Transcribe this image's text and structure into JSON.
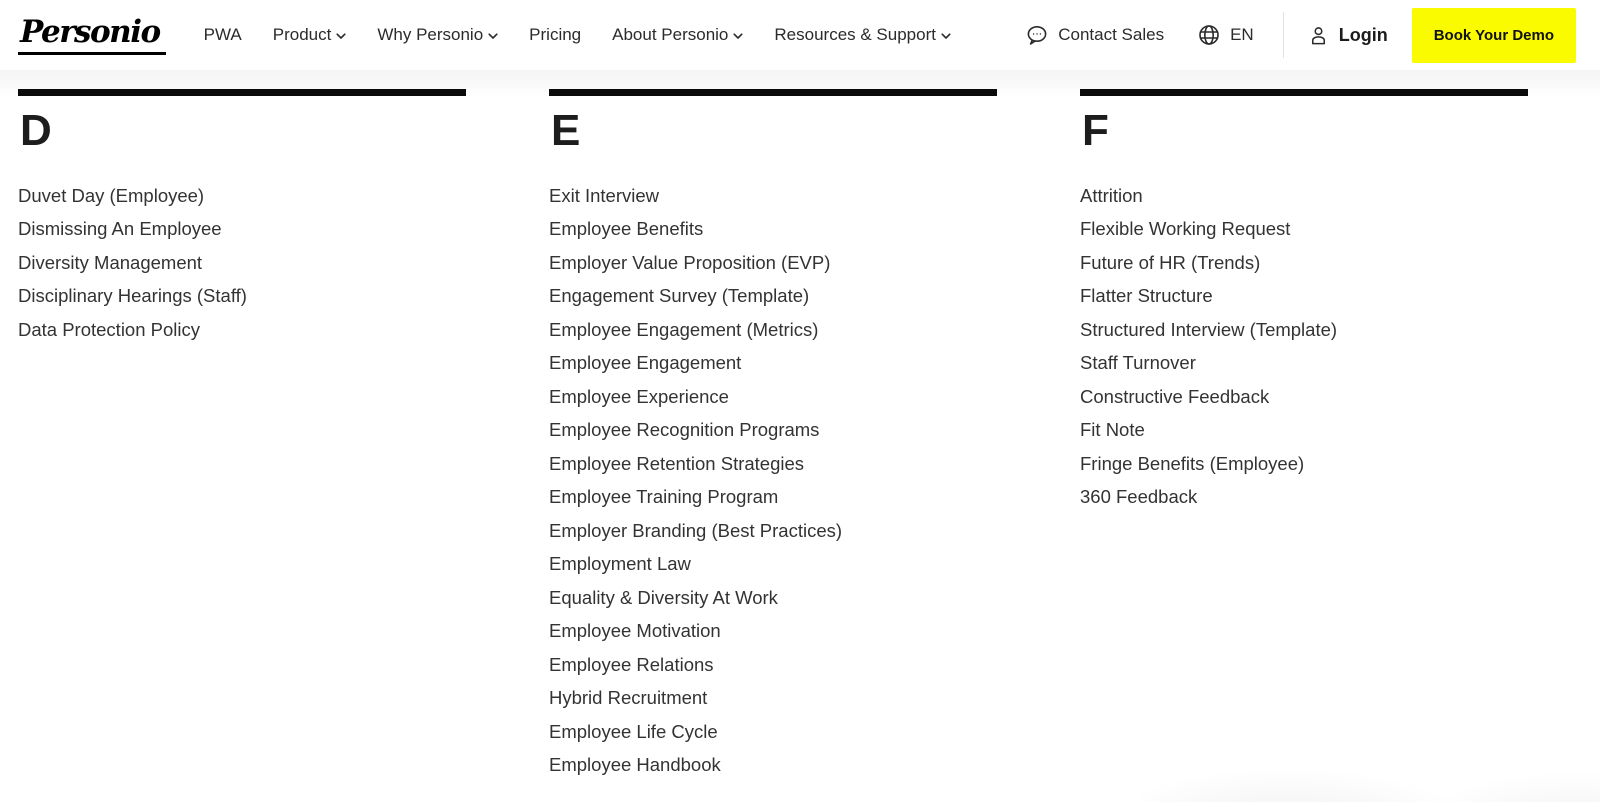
{
  "nav": {
    "logo_text": "Personio",
    "items": [
      {
        "label": "PWA",
        "has_dropdown": false
      },
      {
        "label": "Product",
        "has_dropdown": true
      },
      {
        "label": "Why Personio",
        "has_dropdown": true
      },
      {
        "label": "Pricing",
        "has_dropdown": false
      },
      {
        "label": "About Personio",
        "has_dropdown": true
      },
      {
        "label": "Resources & Support",
        "has_dropdown": true
      }
    ],
    "contact_sales_label": "Contact Sales",
    "language_label": "EN",
    "login_label": "Login",
    "demo_button_label": "Book Your Demo",
    "demo_button_color": "#FBFB00"
  },
  "glossary": {
    "sections": [
      {
        "letter": "D",
        "items": [
          "Duvet Day (Employee)",
          "Dismissing An Employee",
          "Diversity Management",
          "Disciplinary Hearings (Staff)",
          "Data Protection Policy"
        ]
      },
      {
        "letter": "E",
        "items": [
          "Exit Interview",
          "Employee Benefits",
          "Employer Value Proposition (EVP)",
          "Engagement Survey (Template)",
          "Employee Engagement (Metrics)",
          "Employee Engagement",
          "Employee Experience",
          "Employee Recognition Programs",
          "Employee Retention Strategies",
          "Employee Training Program",
          "Employer Branding (Best Practices)",
          "Employment Law",
          "Equality & Diversity At Work",
          "Employee Motivation",
          "Employee Relations",
          "Hybrid Recruitment",
          "Employee Life Cycle",
          "Employee Handbook"
        ]
      },
      {
        "letter": "F",
        "items": [
          "Attrition",
          "Flexible Working Request",
          "Future of HR (Trends)",
          "Flatter Structure",
          "Structured Interview (Template)",
          "Staff Turnover",
          "Constructive Feedback",
          "Fit Note",
          "Fringe Benefits (Employee)",
          "360 Feedback"
        ]
      }
    ]
  }
}
